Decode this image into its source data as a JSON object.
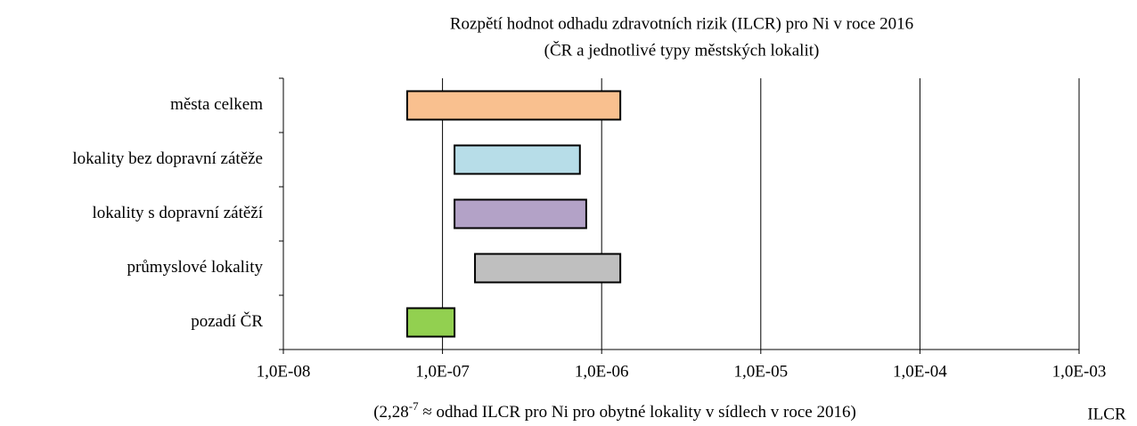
{
  "chart_data": {
    "type": "floating_bar",
    "title": [
      "Rozpětí hodnot odhadu zdravotních rizik (ILCR) pro Ni v roce 2016",
      "(ČR a jednotlivé typy městských lokalit)"
    ],
    "categories": [
      "města celkem",
      "lokality bez dopravní zátěže",
      "lokality s dopravní zátěží",
      "průmyslové lokality",
      "pozadí ČR"
    ],
    "values": [
      [
        6e-08,
        1.31e-06
      ],
      [
        1.19e-07,
        7.3e-07
      ],
      [
        1.19e-07,
        8e-07
      ],
      [
        1.6e-07,
        1.31e-06
      ],
      [
        6e-08,
        1.19e-07
      ]
    ],
    "colors": [
      "#f9c08f",
      "#b7dde8",
      "#b3a2c7",
      "#bfbfbf",
      "#92d050"
    ],
    "xscale": "log",
    "xlim": [
      1e-08,
      0.001
    ],
    "xticks": [
      {
        "value": 1e-08,
        "label": "1,0E-08"
      },
      {
        "value": 1e-07,
        "label": "1,0E-07"
      },
      {
        "value": 1e-06,
        "label": "1,0E-06"
      },
      {
        "value": 1e-05,
        "label": "1,0E-05"
      },
      {
        "value": 0.0001,
        "label": "1,0E-04"
      },
      {
        "value": 0.001,
        "label": "1,0E-03"
      }
    ],
    "grid": true,
    "annotation": {
      "prefix": "(2,28",
      "superscript": "-7",
      "text": " ≈ odhad ILCR pro Ni pro obytné lokality v sídlech v roce 2016)"
    },
    "xlabel": "ILCR"
  }
}
